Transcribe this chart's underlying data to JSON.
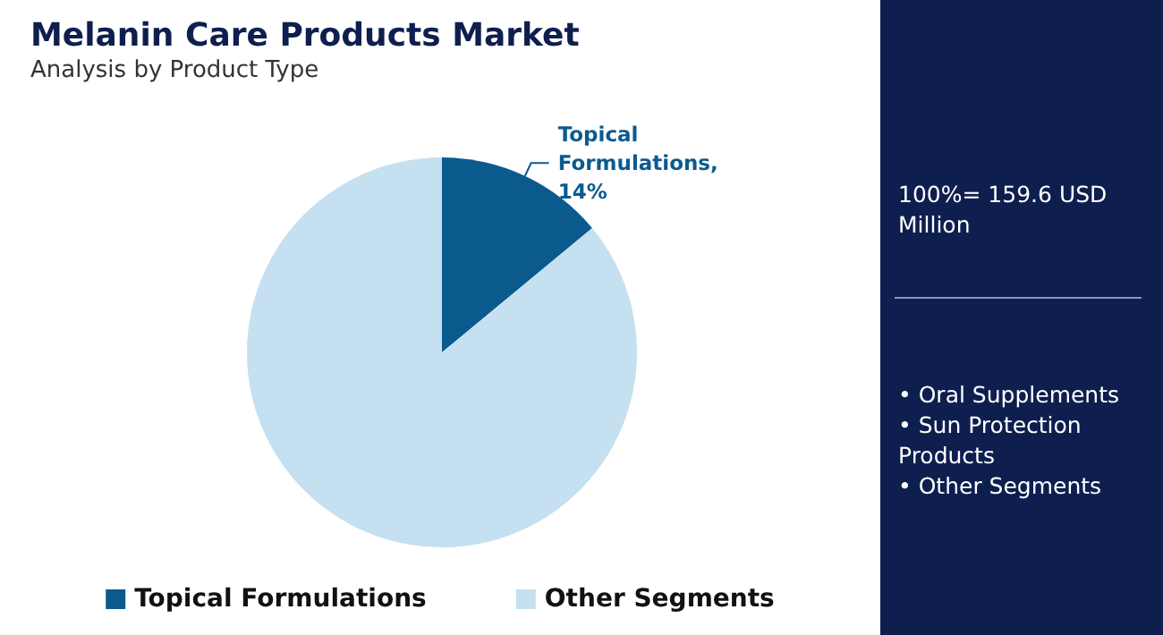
{
  "chart_data": {
    "type": "pie",
    "title": "Melanin Care Products Market",
    "subtitle": "Analysis by Product Type",
    "categories": [
      "Topical Formulations",
      "Other Segments"
    ],
    "values": [
      14,
      86
    ],
    "colors": [
      "#0b5a8e",
      "#c5e0f0"
    ],
    "value_labels": [
      "Topical Formulations, 14%",
      null
    ],
    "legend": "bottom",
    "annotations": [
      "100%= 159.6 USD Million",
      "• Oral Supplements\n• Sun Protection Products\n• Other Segments"
    ]
  }
}
